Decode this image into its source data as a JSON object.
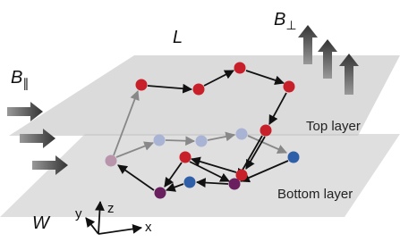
{
  "labels": {
    "length": "L",
    "b_parallel": {
      "symbol": "B",
      "sub": "∥"
    },
    "b_perp": {
      "symbol": "B",
      "sub": "⊥"
    },
    "width": "W",
    "top_layer": "Top layer",
    "bottom_layer": "Bottom layer",
    "axis_x": "x",
    "axis_y": "y",
    "axis_z": "z"
  }
}
